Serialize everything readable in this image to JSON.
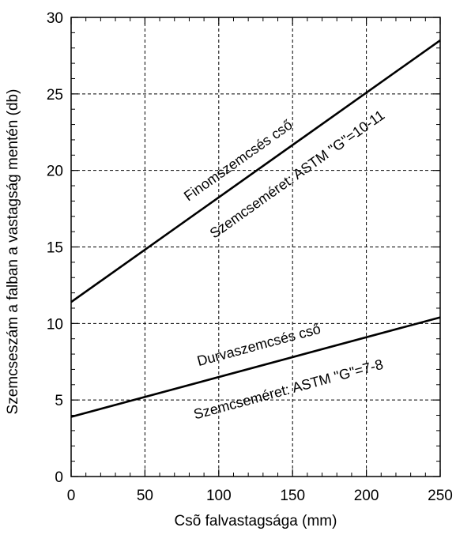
{
  "chart_data": {
    "type": "line",
    "xlabel": "Csõ falvastagsága (mm)",
    "ylabel": "Szemcseszám a falban a vastagság mentén (db)",
    "xlim": [
      0,
      250
    ],
    "ylim": [
      0,
      30
    ],
    "x_ticks": [
      0,
      50,
      100,
      150,
      200,
      250
    ],
    "y_ticks": [
      0,
      5,
      10,
      15,
      20,
      25,
      30
    ],
    "grid": true,
    "series": [
      {
        "x": [
          0,
          250
        ],
        "values": [
          11.4,
          28.5
        ]
      },
      {
        "x": [
          0,
          250
        ],
        "values": [
          3.9,
          10.4
        ]
      }
    ],
    "annotations": [
      {
        "text": "Finomszemcsés cső",
        "x": 115,
        "y": 20.4
      },
      {
        "text": "Szemcseméret: ASTM \"G\"=10-11",
        "x": 155,
        "y": 19.5
      },
      {
        "text": "Durvaszemcsés cső",
        "x": 128,
        "y": 8.3
      },
      {
        "text": "Szemcseméret: ASTM \"G\"=7-8",
        "x": 148,
        "y": 5.4
      }
    ]
  }
}
